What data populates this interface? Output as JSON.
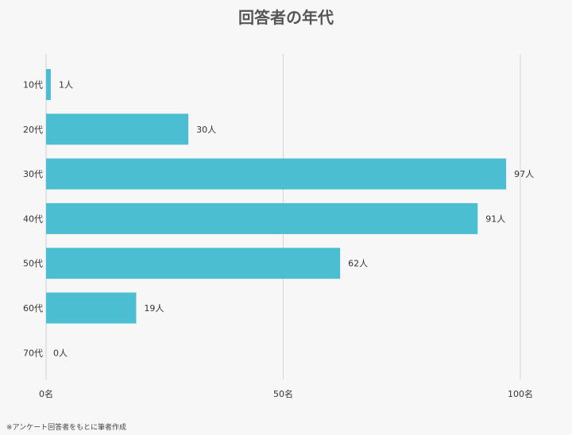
{
  "title": "回答者の年代",
  "footnote": "※アンケート回答者をもとに筆者作成",
  "chart_data": {
    "type": "bar",
    "orientation": "horizontal",
    "title": "回答者の年代",
    "categories": [
      "10代",
      "20代",
      "30代",
      "40代",
      "50代",
      "60代",
      "70代"
    ],
    "values": [
      1,
      30,
      97,
      91,
      62,
      19,
      0
    ],
    "value_labels": [
      "1人",
      "30人",
      "97人",
      "91人",
      "62人",
      "19人",
      "0人"
    ],
    "x_ticks": [
      0,
      50,
      100
    ],
    "x_tick_labels": [
      "0名",
      "50名",
      "100名"
    ],
    "xlim": [
      0,
      100
    ],
    "grid": true,
    "bar_color": "#4bbfd1",
    "grid_color": "#d4d4d4"
  }
}
